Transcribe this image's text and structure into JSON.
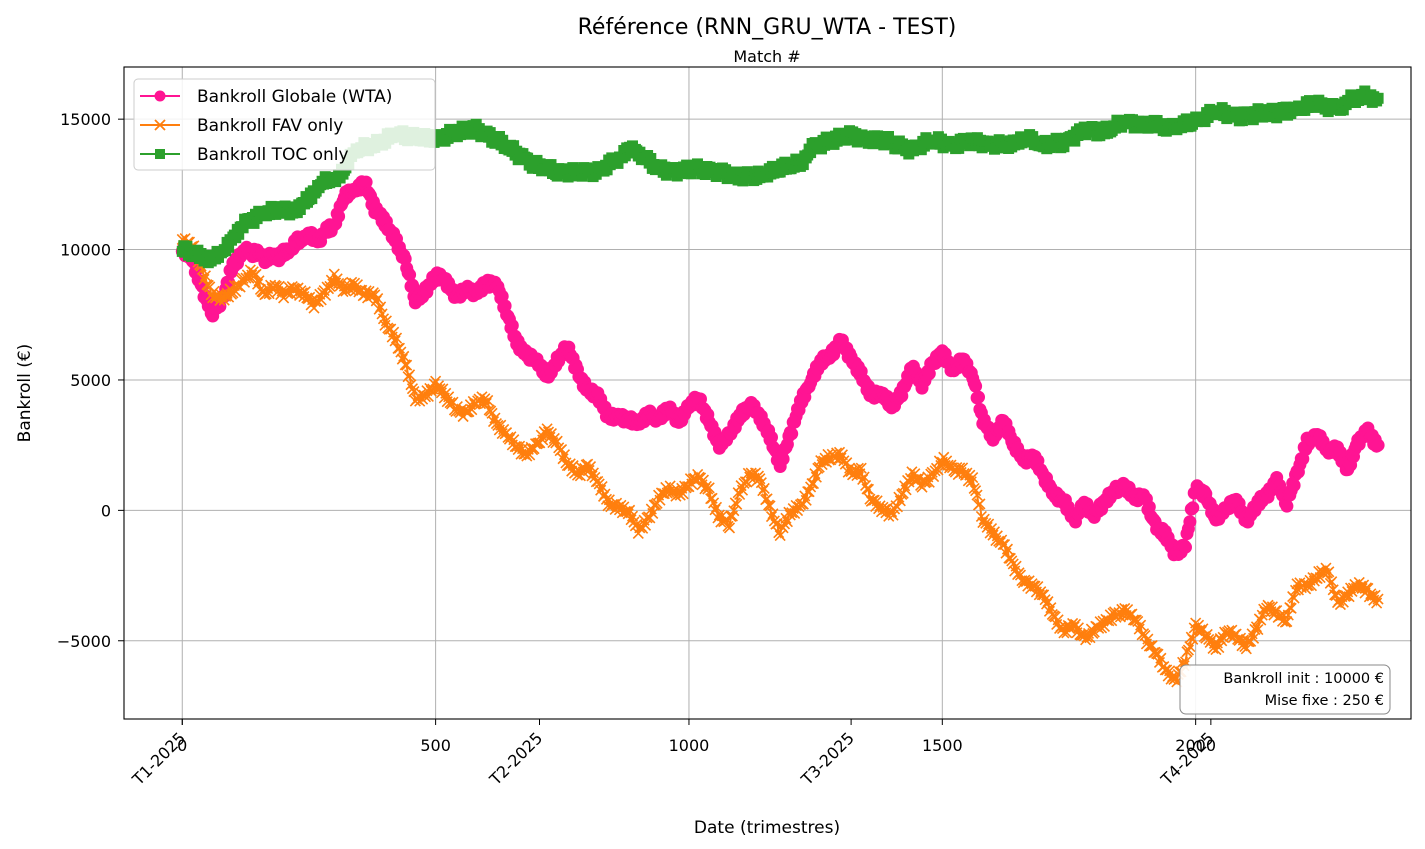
{
  "chart_data": {
    "type": "line",
    "title": "Référence (RNN_GRU_WTA - TEST)",
    "top_xlabel": "Match #",
    "xlabel": "Date (trimestres)",
    "ylabel": "Bankroll (€)",
    "xlim": [
      -115,
      2425
    ],
    "ylim": [
      -8000,
      17000
    ],
    "match_ticks": [
      0,
      500,
      1000,
      1500,
      2000
    ],
    "y_ticks": [
      -5000,
      0,
      5000,
      10000,
      15000
    ],
    "y_tick_labels": [
      "−5000",
      "0",
      "5000",
      "10000",
      "15000"
    ],
    "date_ticks": [
      {
        "label": "T1-2025",
        "x": 0
      },
      {
        "label": "T2-2025",
        "x": 705
      },
      {
        "label": "T3-2025",
        "x": 1320
      },
      {
        "label": "T4-2025",
        "x": 2030
      }
    ],
    "grid": true,
    "legend_position": "top-left",
    "annotation": {
      "line1": "Bankroll init : 10000 €",
      "line2": "Mise fixe : 250 €"
    },
    "series": [
      {
        "name": "Bankroll Globale (WTA)",
        "color": "#ff1493",
        "marker": "circle",
        "points": [
          [
            0,
            10000
          ],
          [
            20,
            9500
          ],
          [
            40,
            8500
          ],
          [
            60,
            7600
          ],
          [
            80,
            8000
          ],
          [
            100,
            9500
          ],
          [
            130,
            10000
          ],
          [
            160,
            9700
          ],
          [
            200,
            9800
          ],
          [
            240,
            10500
          ],
          [
            270,
            10400
          ],
          [
            300,
            11000
          ],
          [
            320,
            12000
          ],
          [
            340,
            12200
          ],
          [
            360,
            12700
          ],
          [
            380,
            11500
          ],
          [
            400,
            11000
          ],
          [
            420,
            10500
          ],
          [
            440,
            9500
          ],
          [
            460,
            8000
          ],
          [
            480,
            8500
          ],
          [
            500,
            9000
          ],
          [
            520,
            8700
          ],
          [
            540,
            8300
          ],
          [
            560,
            8500
          ],
          [
            580,
            8200
          ],
          [
            600,
            8800
          ],
          [
            620,
            8700
          ],
          [
            640,
            7500
          ],
          [
            660,
            6500
          ],
          [
            680,
            6000
          ],
          [
            700,
            5600
          ],
          [
            720,
            5200
          ],
          [
            740,
            5800
          ],
          [
            760,
            6200
          ],
          [
            780,
            5300
          ],
          [
            800,
            4700
          ],
          [
            820,
            4300
          ],
          [
            840,
            3600
          ],
          [
            860,
            3700
          ],
          [
            880,
            3400
          ],
          [
            900,
            3300
          ],
          [
            920,
            3800
          ],
          [
            940,
            3400
          ],
          [
            960,
            3900
          ],
          [
            980,
            3500
          ],
          [
            1000,
            4000
          ],
          [
            1020,
            4200
          ],
          [
            1040,
            3500
          ],
          [
            1060,
            2500
          ],
          [
            1080,
            2800
          ],
          [
            1100,
            3700
          ],
          [
            1120,
            4100
          ],
          [
            1140,
            3500
          ],
          [
            1160,
            2900
          ],
          [
            1180,
            1800
          ],
          [
            1200,
            2800
          ],
          [
            1220,
            4200
          ],
          [
            1240,
            5000
          ],
          [
            1260,
            5600
          ],
          [
            1280,
            6000
          ],
          [
            1300,
            6600
          ],
          [
            1320,
            5700
          ],
          [
            1340,
            5200
          ],
          [
            1360,
            4500
          ],
          [
            1380,
            4400
          ],
          [
            1400,
            4000
          ],
          [
            1420,
            4600
          ],
          [
            1440,
            5400
          ],
          [
            1460,
            4800
          ],
          [
            1480,
            5700
          ],
          [
            1500,
            6000
          ],
          [
            1520,
            5300
          ],
          [
            1540,
            5900
          ],
          [
            1560,
            5100
          ],
          [
            1580,
            3400
          ],
          [
            1600,
            2900
          ],
          [
            1620,
            3400
          ],
          [
            1640,
            2500
          ],
          [
            1660,
            2000
          ],
          [
            1680,
            2100
          ],
          [
            1700,
            1200
          ],
          [
            1720,
            700
          ],
          [
            1740,
            400
          ],
          [
            1760,
            -500
          ],
          [
            1780,
            300
          ],
          [
            1800,
            -100
          ],
          [
            1820,
            200
          ],
          [
            1840,
            800
          ],
          [
            1860,
            1000
          ],
          [
            1880,
            400
          ],
          [
            1900,
            500
          ],
          [
            1920,
            -500
          ],
          [
            1940,
            -1000
          ],
          [
            1960,
            -1700
          ],
          [
            1980,
            -1200
          ],
          [
            2000,
            800
          ],
          [
            2020,
            500
          ],
          [
            2040,
            -200
          ],
          [
            2060,
            0
          ],
          [
            2080,
            300
          ],
          [
            2100,
            -300
          ],
          [
            2120,
            200
          ],
          [
            2140,
            500
          ],
          [
            2160,
            1200
          ],
          [
            2180,
            300
          ],
          [
            2200,
            1300
          ],
          [
            2220,
            2700
          ],
          [
            2240,
            2900
          ],
          [
            2260,
            2200
          ],
          [
            2280,
            2400
          ],
          [
            2300,
            1600
          ],
          [
            2320,
            2500
          ],
          [
            2340,
            3100
          ],
          [
            2360,
            2500
          ]
        ]
      },
      {
        "name": "Bankroll FAV only",
        "color": "#ff7f0e",
        "marker": "x",
        "points": [
          [
            0,
            10300
          ],
          [
            20,
            10100
          ],
          [
            40,
            9200
          ],
          [
            60,
            8300
          ],
          [
            80,
            8000
          ],
          [
            100,
            8500
          ],
          [
            120,
            8800
          ],
          [
            140,
            9100
          ],
          [
            160,
            8300
          ],
          [
            180,
            8700
          ],
          [
            200,
            8200
          ],
          [
            220,
            8500
          ],
          [
            240,
            8400
          ],
          [
            260,
            7800
          ],
          [
            280,
            8300
          ],
          [
            300,
            9000
          ],
          [
            320,
            8400
          ],
          [
            340,
            8600
          ],
          [
            360,
            8400
          ],
          [
            380,
            8200
          ],
          [
            400,
            7200
          ],
          [
            420,
            6700
          ],
          [
            440,
            5600
          ],
          [
            460,
            4200
          ],
          [
            480,
            4500
          ],
          [
            500,
            4800
          ],
          [
            520,
            4300
          ],
          [
            540,
            4000
          ],
          [
            560,
            3700
          ],
          [
            580,
            4100
          ],
          [
            600,
            4300
          ],
          [
            620,
            3300
          ],
          [
            640,
            2800
          ],
          [
            660,
            2500
          ],
          [
            680,
            2200
          ],
          [
            700,
            2400
          ],
          [
            720,
            3100
          ],
          [
            740,
            2600
          ],
          [
            760,
            1700
          ],
          [
            780,
            1400
          ],
          [
            800,
            1800
          ],
          [
            820,
            1000
          ],
          [
            840,
            300
          ],
          [
            860,
            200
          ],
          [
            880,
            -100
          ],
          [
            900,
            -800
          ],
          [
            920,
            -200
          ],
          [
            940,
            400
          ],
          [
            960,
            800
          ],
          [
            980,
            700
          ],
          [
            1000,
            1000
          ],
          [
            1020,
            1200
          ],
          [
            1040,
            800
          ],
          [
            1060,
            -300
          ],
          [
            1080,
            -600
          ],
          [
            1100,
            800
          ],
          [
            1120,
            1400
          ],
          [
            1140,
            1100
          ],
          [
            1160,
            100
          ],
          [
            1180,
            -800
          ],
          [
            1200,
            -200
          ],
          [
            1220,
            200
          ],
          [
            1240,
            900
          ],
          [
            1260,
            1700
          ],
          [
            1280,
            2100
          ],
          [
            1300,
            2200
          ],
          [
            1320,
            1300
          ],
          [
            1340,
            1500
          ],
          [
            1360,
            500
          ],
          [
            1380,
            0
          ],
          [
            1400,
            -200
          ],
          [
            1420,
            700
          ],
          [
            1440,
            1300
          ],
          [
            1460,
            1000
          ],
          [
            1480,
            1400
          ],
          [
            1500,
            1900
          ],
          [
            1520,
            1500
          ],
          [
            1540,
            1600
          ],
          [
            1560,
            1100
          ],
          [
            1580,
            -400
          ],
          [
            1600,
            -800
          ],
          [
            1620,
            -1300
          ],
          [
            1640,
            -2200
          ],
          [
            1660,
            -2600
          ],
          [
            1680,
            -2900
          ],
          [
            1700,
            -3400
          ],
          [
            1720,
            -4000
          ],
          [
            1740,
            -4600
          ],
          [
            1760,
            -4500
          ],
          [
            1780,
            -4900
          ],
          [
            1800,
            -4500
          ],
          [
            1820,
            -4400
          ],
          [
            1840,
            -4000
          ],
          [
            1860,
            -3800
          ],
          [
            1880,
            -4200
          ],
          [
            1900,
            -4900
          ],
          [
            1920,
            -5300
          ],
          [
            1940,
            -6200
          ],
          [
            1960,
            -6600
          ],
          [
            1980,
            -5600
          ],
          [
            2000,
            -4500
          ],
          [
            2020,
            -4800
          ],
          [
            2040,
            -5200
          ],
          [
            2060,
            -4700
          ],
          [
            2080,
            -4900
          ],
          [
            2100,
            -5100
          ],
          [
            2120,
            -4600
          ],
          [
            2140,
            -3700
          ],
          [
            2160,
            -3900
          ],
          [
            2180,
            -4200
          ],
          [
            2200,
            -3000
          ],
          [
            2220,
            -2800
          ],
          [
            2240,
            -2500
          ],
          [
            2260,
            -2400
          ],
          [
            2280,
            -3500
          ],
          [
            2300,
            -3200
          ],
          [
            2320,
            -2900
          ],
          [
            2340,
            -3100
          ],
          [
            2360,
            -3400
          ]
        ]
      },
      {
        "name": "Bankroll TOC only",
        "color": "#2ca02c",
        "marker": "square",
        "points": [
          [
            0,
            10000
          ],
          [
            40,
            9700
          ],
          [
            60,
            9700
          ],
          [
            80,
            9800
          ],
          [
            100,
            10500
          ],
          [
            120,
            11000
          ],
          [
            160,
            11400
          ],
          [
            200,
            11500
          ],
          [
            230,
            11500
          ],
          [
            250,
            12000
          ],
          [
            270,
            12500
          ],
          [
            300,
            12700
          ],
          [
            320,
            13000
          ],
          [
            340,
            13800
          ],
          [
            380,
            14000
          ],
          [
            420,
            14400
          ],
          [
            460,
            14300
          ],
          [
            500,
            14200
          ],
          [
            540,
            14500
          ],
          [
            580,
            14600
          ],
          [
            620,
            14200
          ],
          [
            660,
            13700
          ],
          [
            700,
            13200
          ],
          [
            740,
            13000
          ],
          [
            780,
            13000
          ],
          [
            820,
            13000
          ],
          [
            860,
            13500
          ],
          [
            880,
            13800
          ],
          [
            900,
            13700
          ],
          [
            940,
            13100
          ],
          [
            980,
            13000
          ],
          [
            1020,
            13100
          ],
          [
            1060,
            13000
          ],
          [
            1100,
            12800
          ],
          [
            1140,
            12800
          ],
          [
            1180,
            13100
          ],
          [
            1220,
            13300
          ],
          [
            1240,
            13900
          ],
          [
            1280,
            14200
          ],
          [
            1320,
            14400
          ],
          [
            1360,
            14200
          ],
          [
            1400,
            14100
          ],
          [
            1440,
            13800
          ],
          [
            1480,
            14200
          ],
          [
            1520,
            14000
          ],
          [
            1560,
            14200
          ],
          [
            1600,
            14000
          ],
          [
            1640,
            14000
          ],
          [
            1660,
            14300
          ],
          [
            1700,
            14000
          ],
          [
            1740,
            14100
          ],
          [
            1780,
            14600
          ],
          [
            1820,
            14500
          ],
          [
            1860,
            14900
          ],
          [
            1900,
            14800
          ],
          [
            1960,
            14700
          ],
          [
            2000,
            14900
          ],
          [
            2040,
            15300
          ],
          [
            2080,
            15100
          ],
          [
            2120,
            15200
          ],
          [
            2160,
            15200
          ],
          [
            2200,
            15400
          ],
          [
            2240,
            15600
          ],
          [
            2280,
            15400
          ],
          [
            2300,
            15700
          ],
          [
            2340,
            15900
          ],
          [
            2360,
            15800
          ]
        ]
      }
    ]
  }
}
